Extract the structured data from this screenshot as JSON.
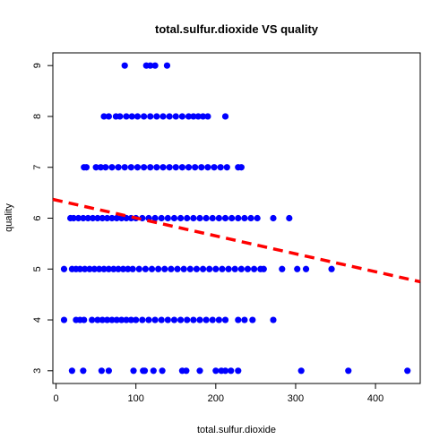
{
  "chart_data": {
    "type": "scatter",
    "title": "total.sulfur.dioxide VS quality",
    "xlabel": "total.sulfur.dioxide",
    "ylabel": "quality",
    "xlim": [
      -4,
      456
    ],
    "ylim": [
      2.75,
      9.25
    ],
    "x_ticks": [
      0,
      100,
      200,
      300,
      400
    ],
    "y_ticks": [
      3,
      4,
      5,
      6,
      7,
      8,
      9
    ],
    "grid": false,
    "point_color": "#0000ff",
    "fit_line": {
      "color": "#ff0000",
      "style": "dashed",
      "start": {
        "x": -4,
        "y": 6.37
      },
      "end": {
        "x": 456,
        "y": 4.75
      }
    },
    "series": [
      {
        "values": [
          {
            "quality": 9,
            "x_points": [
              86,
              113,
              118,
              124,
              139
            ]
          },
          {
            "quality": 8,
            "x_points": [
              60,
              66,
              75,
              80,
              88,
              95,
              102,
              110,
              118,
              126,
              134,
              142,
              150,
              158,
              166,
              172,
              178,
              184,
              190,
              212
            ]
          },
          {
            "quality": 7,
            "x_points": [
              35,
              38,
              50,
              56,
              62,
              70,
              78,
              86,
              94,
              102,
              110,
              118,
              126,
              134,
              142,
              150,
              158,
              166,
              174,
              182,
              190,
              198,
              206,
              214,
              228,
              232
            ]
          },
          {
            "quality": 6,
            "x_points": [
              18,
              22,
              28,
              34,
              40,
              46,
              52,
              58,
              64,
              70,
              76,
              82,
              88,
              94,
              100,
              108,
              116,
              124,
              132,
              140,
              148,
              156,
              164,
              172,
              180,
              188,
              196,
              204,
              212,
              220,
              228,
              236,
              244,
              252,
              272,
              292
            ]
          },
          {
            "quality": 5,
            "x_points": [
              10,
              20,
              25,
              30,
              36,
              42,
              48,
              54,
              60,
              66,
              72,
              78,
              84,
              90,
              96,
              104,
              112,
              120,
              128,
              136,
              144,
              152,
              160,
              168,
              176,
              184,
              192,
              200,
              208,
              216,
              224,
              232,
              240,
              248,
              256,
              260,
              283,
              302,
              313,
              345
            ]
          },
          {
            "quality": 4,
            "x_points": [
              10,
              25,
              30,
              35,
              45,
              52,
              58,
              64,
              70,
              76,
              82,
              88,
              94,
              100,
              108,
              116,
              124,
              132,
              140,
              148,
              156,
              164,
              172,
              180,
              188,
              196,
              204,
              212,
              228,
              236,
              246,
              272
            ]
          },
          {
            "quality": 3,
            "x_points": [
              20,
              34,
              57,
              66,
              97,
              109,
              111,
              122,
              133,
              158,
              163,
              180,
              200,
              207,
              212,
              219,
              228,
              307,
              366,
              440
            ]
          }
        ]
      }
    ]
  }
}
